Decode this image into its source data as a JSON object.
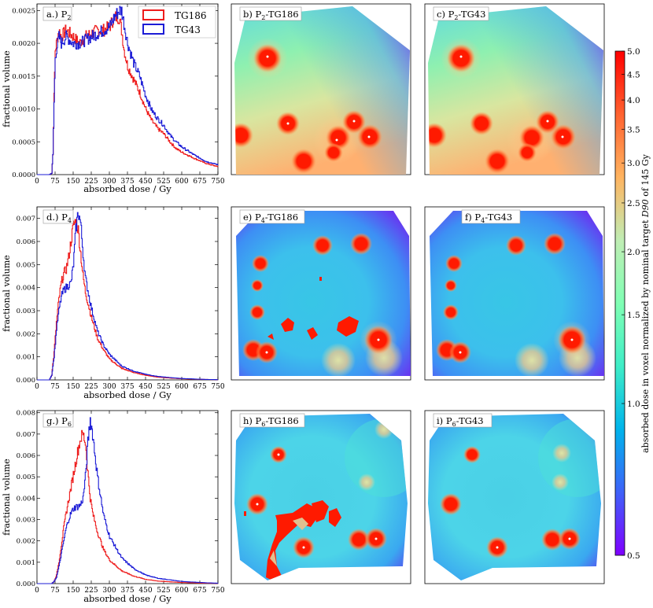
{
  "chart_data": {
    "rows": [
      {
        "type": "line",
        "panel_label": "a.) P2",
        "label_main": "a.) P",
        "label_sub": "2",
        "xlabel": "absorbed dose / Gy",
        "ylabel": "fractional volume",
        "xlim": [
          0,
          750
        ],
        "ylim": [
          0,
          0.0026
        ],
        "x_ticks": [
          "0",
          "75",
          "150",
          "225",
          "300",
          "375",
          "450",
          "525",
          "600",
          "675",
          "750"
        ],
        "y_ticks": [
          "0.0000",
          "0.0005",
          "0.0010",
          "0.0015",
          "0.0020",
          "0.0025"
        ],
        "y_tick_values": [
          0,
          0.0005,
          0.001,
          0.0015,
          0.002,
          0.0025
        ],
        "legend": [
          "TG186",
          "TG43"
        ],
        "series": [
          {
            "name": "TG186",
            "color": "#ee1c1c",
            "x": [
              0,
              50,
              60,
              65,
              70,
              75,
              90,
              100,
              120,
              150,
              175,
              200,
              225,
              250,
              275,
              300,
              320,
              340,
              350,
              360,
              375,
              400,
              425,
              450,
              475,
              500,
              525,
              550,
              575,
              600,
              650,
              700,
              750
            ],
            "y": [
              0,
              0,
              2e-05,
              0.0003,
              0.0012,
              0.0019,
              0.0022,
              0.0021,
              0.0022,
              0.0021,
              0.002,
              0.0021,
              0.00215,
              0.0022,
              0.0022,
              0.00225,
              0.0024,
              0.0024,
              0.0022,
              0.0019,
              0.00165,
              0.00145,
              0.00125,
              0.001,
              0.00082,
              0.0007,
              0.00062,
              0.0005,
              0.0004,
              0.00034,
              0.00025,
              0.00017,
              0.00012
            ]
          },
          {
            "name": "TG43",
            "color": "#1c1cd6",
            "x": [
              0,
              50,
              60,
              65,
              70,
              75,
              90,
              100,
              120,
              150,
              175,
              200,
              225,
              250,
              275,
              300,
              320,
              340,
              350,
              360,
              375,
              400,
              425,
              450,
              475,
              500,
              525,
              550,
              575,
              600,
              650,
              700,
              750
            ],
            "y": [
              0,
              0,
              2e-05,
              0.0003,
              0.0011,
              0.0018,
              0.0021,
              0.002,
              0.0021,
              0.002,
              0.002,
              0.00205,
              0.0021,
              0.00215,
              0.0022,
              0.00225,
              0.0024,
              0.0025,
              0.0025,
              0.0023,
              0.002,
              0.0017,
              0.0015,
              0.0012,
              0.00098,
              0.00085,
              0.00075,
              0.0006,
              0.0005,
              0.00042,
              0.0003,
              0.0002,
              0.00015
            ]
          }
        ],
        "map_labels": [
          {
            "main": "b) P",
            "sub": "2",
            "rest": "-TG186"
          },
          {
            "main": "c) P",
            "sub": "2",
            "rest": "-TG43"
          }
        ]
      },
      {
        "type": "line",
        "panel_label": "d.) P4",
        "label_main": "d.) P",
        "label_sub": "4",
        "xlabel": "absorbed dose / Gy",
        "ylabel": "fractional volume",
        "xlim": [
          0,
          750
        ],
        "ylim": [
          0,
          0.0075
        ],
        "x_ticks": [
          "0",
          "75",
          "150",
          "225",
          "300",
          "375",
          "450",
          "525",
          "600",
          "675",
          "750"
        ],
        "y_ticks": [
          "0.000",
          "0.001",
          "0.002",
          "0.003",
          "0.004",
          "0.005",
          "0.006",
          "0.007"
        ],
        "y_tick_values": [
          0,
          0.001,
          0.002,
          0.003,
          0.004,
          0.005,
          0.006,
          0.007
        ],
        "series": [
          {
            "name": "TG186",
            "color": "#ee1c1c",
            "x": [
              0,
              50,
              60,
              70,
              80,
              90,
              100,
              110,
              120,
              130,
              140,
              150,
              160,
              170,
              180,
              190,
              200,
              225,
              250,
              275,
              300,
              350,
              400,
              450,
              500,
              550,
              600,
              650,
              700,
              750
            ],
            "y": [
              0,
              0,
              0.0002,
              0.0012,
              0.0025,
              0.0035,
              0.0042,
              0.0046,
              0.0048,
              0.0053,
              0.006,
              0.0067,
              0.0069,
              0.0065,
              0.0055,
              0.0045,
              0.0038,
              0.0027,
              0.0018,
              0.0013,
              0.0009,
              0.0005,
              0.00032,
              0.0002,
              0.00012,
              8e-05,
              5e-05,
              3e-05,
              2e-05,
              1e-05
            ]
          },
          {
            "name": "TG43",
            "color": "#1c1cd6",
            "x": [
              0,
              50,
              60,
              70,
              80,
              90,
              100,
              110,
              120,
              130,
              140,
              150,
              160,
              170,
              180,
              190,
              200,
              225,
              250,
              275,
              300,
              350,
              400,
              450,
              500,
              550,
              600,
              650,
              700,
              750
            ],
            "y": [
              0,
              0,
              0.0002,
              0.001,
              0.0022,
              0.003,
              0.0036,
              0.0039,
              0.004,
              0.0041,
              0.0042,
              0.005,
              0.0065,
              0.0073,
              0.0068,
              0.0055,
              0.0044,
              0.0031,
              0.0021,
              0.0015,
              0.0011,
              0.0006,
              0.00038,
              0.00024,
              0.00015,
              0.0001,
              6e-05,
              4e-05,
              2e-05,
              1e-05
            ]
          }
        ],
        "map_labels": [
          {
            "main": "e) P",
            "sub": "4",
            "rest": "-TG186"
          },
          {
            "main": "f) P",
            "sub": "4",
            "rest": "-TG43"
          }
        ]
      },
      {
        "type": "line",
        "panel_label": "g.) P6",
        "label_main": "g.) P",
        "label_sub": "6",
        "xlabel": "absorbed dose / Gy",
        "ylabel": "fractional volume",
        "xlim": [
          0,
          750
        ],
        "ylim": [
          0,
          0.0081
        ],
        "x_ticks": [
          "0",
          "75",
          "150",
          "225",
          "300",
          "375",
          "450",
          "525",
          "600",
          "675",
          "750"
        ],
        "y_ticks": [
          "0.000",
          "0.001",
          "0.002",
          "0.003",
          "0.004",
          "0.005",
          "0.006",
          "0.007",
          "0.008"
        ],
        "y_tick_values": [
          0,
          0.001,
          0.002,
          0.003,
          0.004,
          0.005,
          0.006,
          0.007,
          0.008
        ],
        "series": [
          {
            "name": "TG186",
            "color": "#ee1c1c",
            "x": [
              0,
              60,
              70,
              80,
              90,
              100,
              110,
              120,
              130,
              140,
              150,
              160,
              170,
              180,
              190,
              200,
              210,
              220,
              230,
              250,
              275,
              300,
              350,
              400,
              450,
              500,
              600,
              700,
              750
            ],
            "y": [
              0,
              0,
              0.0001,
              0.0004,
              0.001,
              0.0018,
              0.0026,
              0.0033,
              0.0039,
              0.0045,
              0.0051,
              0.0057,
              0.0063,
              0.0068,
              0.007,
              0.0066,
              0.0052,
              0.004,
              0.0033,
              0.0024,
              0.0016,
              0.0011,
              0.0006,
              0.00035,
              0.0002,
              0.00012,
              5e-05,
              2e-05,
              1e-05
            ]
          },
          {
            "name": "TG43",
            "color": "#1c1cd6",
            "x": [
              0,
              60,
              70,
              80,
              90,
              100,
              110,
              120,
              130,
              140,
              150,
              160,
              170,
              180,
              190,
              200,
              210,
              220,
              230,
              250,
              275,
              300,
              350,
              400,
              450,
              500,
              600,
              700,
              750
            ],
            "y": [
              0,
              0,
              0.0001,
              0.0003,
              0.0008,
              0.0014,
              0.002,
              0.0026,
              0.003,
              0.0033,
              0.0035,
              0.0036,
              0.0036,
              0.0037,
              0.004,
              0.005,
              0.0066,
              0.0077,
              0.007,
              0.005,
              0.0032,
              0.0022,
              0.0012,
              0.0007,
              0.0004,
              0.00025,
              0.0001,
              4e-05,
              2e-05
            ]
          }
        ],
        "map_labels": [
          {
            "main": "h) P",
            "sub": "6",
            "rest": "-TG186"
          },
          {
            "main": "i) P",
            "sub": "6",
            "rest": "-TG43"
          }
        ]
      }
    ],
    "colorbar": {
      "type": "colorbar",
      "scale": "log",
      "range": [
        0.5,
        5.0
      ],
      "ticks": [
        "5.0",
        "4.5",
        "4.0",
        "3.5",
        "3.0",
        "2.5",
        "2.0",
        "1.5",
        "1.0",
        "0.5"
      ],
      "tick_values": [
        5.0,
        4.5,
        4.0,
        3.5,
        3.0,
        2.5,
        2.0,
        1.5,
        1.0,
        0.5
      ],
      "label_pre": "absorbed dose in voxel normalized by nominal target ",
      "label_italic": "D90",
      "label_post": " of 145 Gy",
      "colors": [
        "#7f00ff",
        "#3f62f9",
        "#00b4eb",
        "#3fedc7",
        "#80ffb4",
        "#c0edb4",
        "#ffb460",
        "#ff6230",
        "#ff0000"
      ]
    },
    "maps": {
      "background_green": "#74e6b0",
      "cyan": "#4ccfe6",
      "violet": "#7a2cf0",
      "hot": "#ff1a00",
      "orange": "#ff9a4c"
    }
  }
}
